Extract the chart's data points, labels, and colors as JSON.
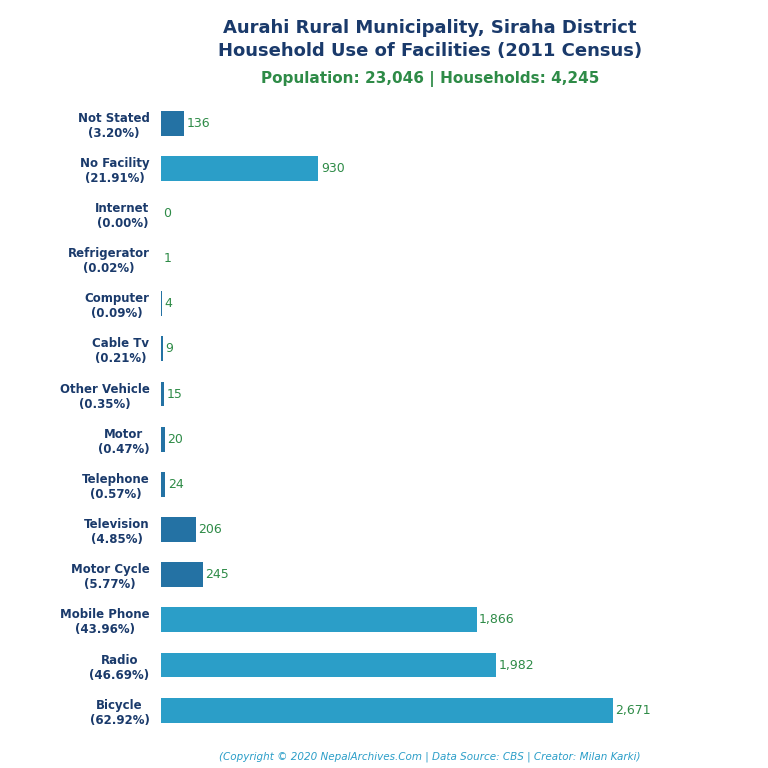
{
  "title_line1": "Aurahi Rural Municipality, Siraha District",
  "title_line2": "Household Use of Facilities (2011 Census)",
  "subtitle": "Population: 23,046 | Households: 4,245",
  "footer": "(Copyright © 2020 NepalArchives.Com | Data Source: CBS | Creator: Milan Karki)",
  "categories": [
    "Bicycle\n(62.92%)",
    "Radio\n(46.69%)",
    "Mobile Phone\n(43.96%)",
    "Motor Cycle\n(5.77%)",
    "Television\n(4.85%)",
    "Telephone\n(0.57%)",
    "Motor\n(0.47%)",
    "Other Vehicle\n(0.35%)",
    "Cable Tv\n(0.21%)",
    "Computer\n(0.09%)",
    "Refrigerator\n(0.02%)",
    "Internet\n(0.00%)",
    "No Facility\n(21.91%)",
    "Not Stated\n(3.20%)"
  ],
  "values": [
    2671,
    1982,
    1866,
    245,
    206,
    24,
    20,
    15,
    9,
    4,
    1,
    0,
    930,
    136
  ],
  "bar_colors": [
    "#2b9ec8",
    "#2b9ec8",
    "#2b9ec8",
    "#2472a4",
    "#2472a4",
    "#2472a4",
    "#2472a4",
    "#2472a4",
    "#2472a4",
    "#2472a4",
    "#2472a4",
    "#2472a4",
    "#2b9ec8",
    "#2472a4"
  ],
  "title_color": "#1a3a6b",
  "subtitle_color": "#2e8b47",
  "label_color": "#1a3a6b",
  "value_color": "#2e8b47",
  "footer_color": "#2b9ec8",
  "bg_color": "#ffffff",
  "xlim": [
    0,
    3000
  ]
}
